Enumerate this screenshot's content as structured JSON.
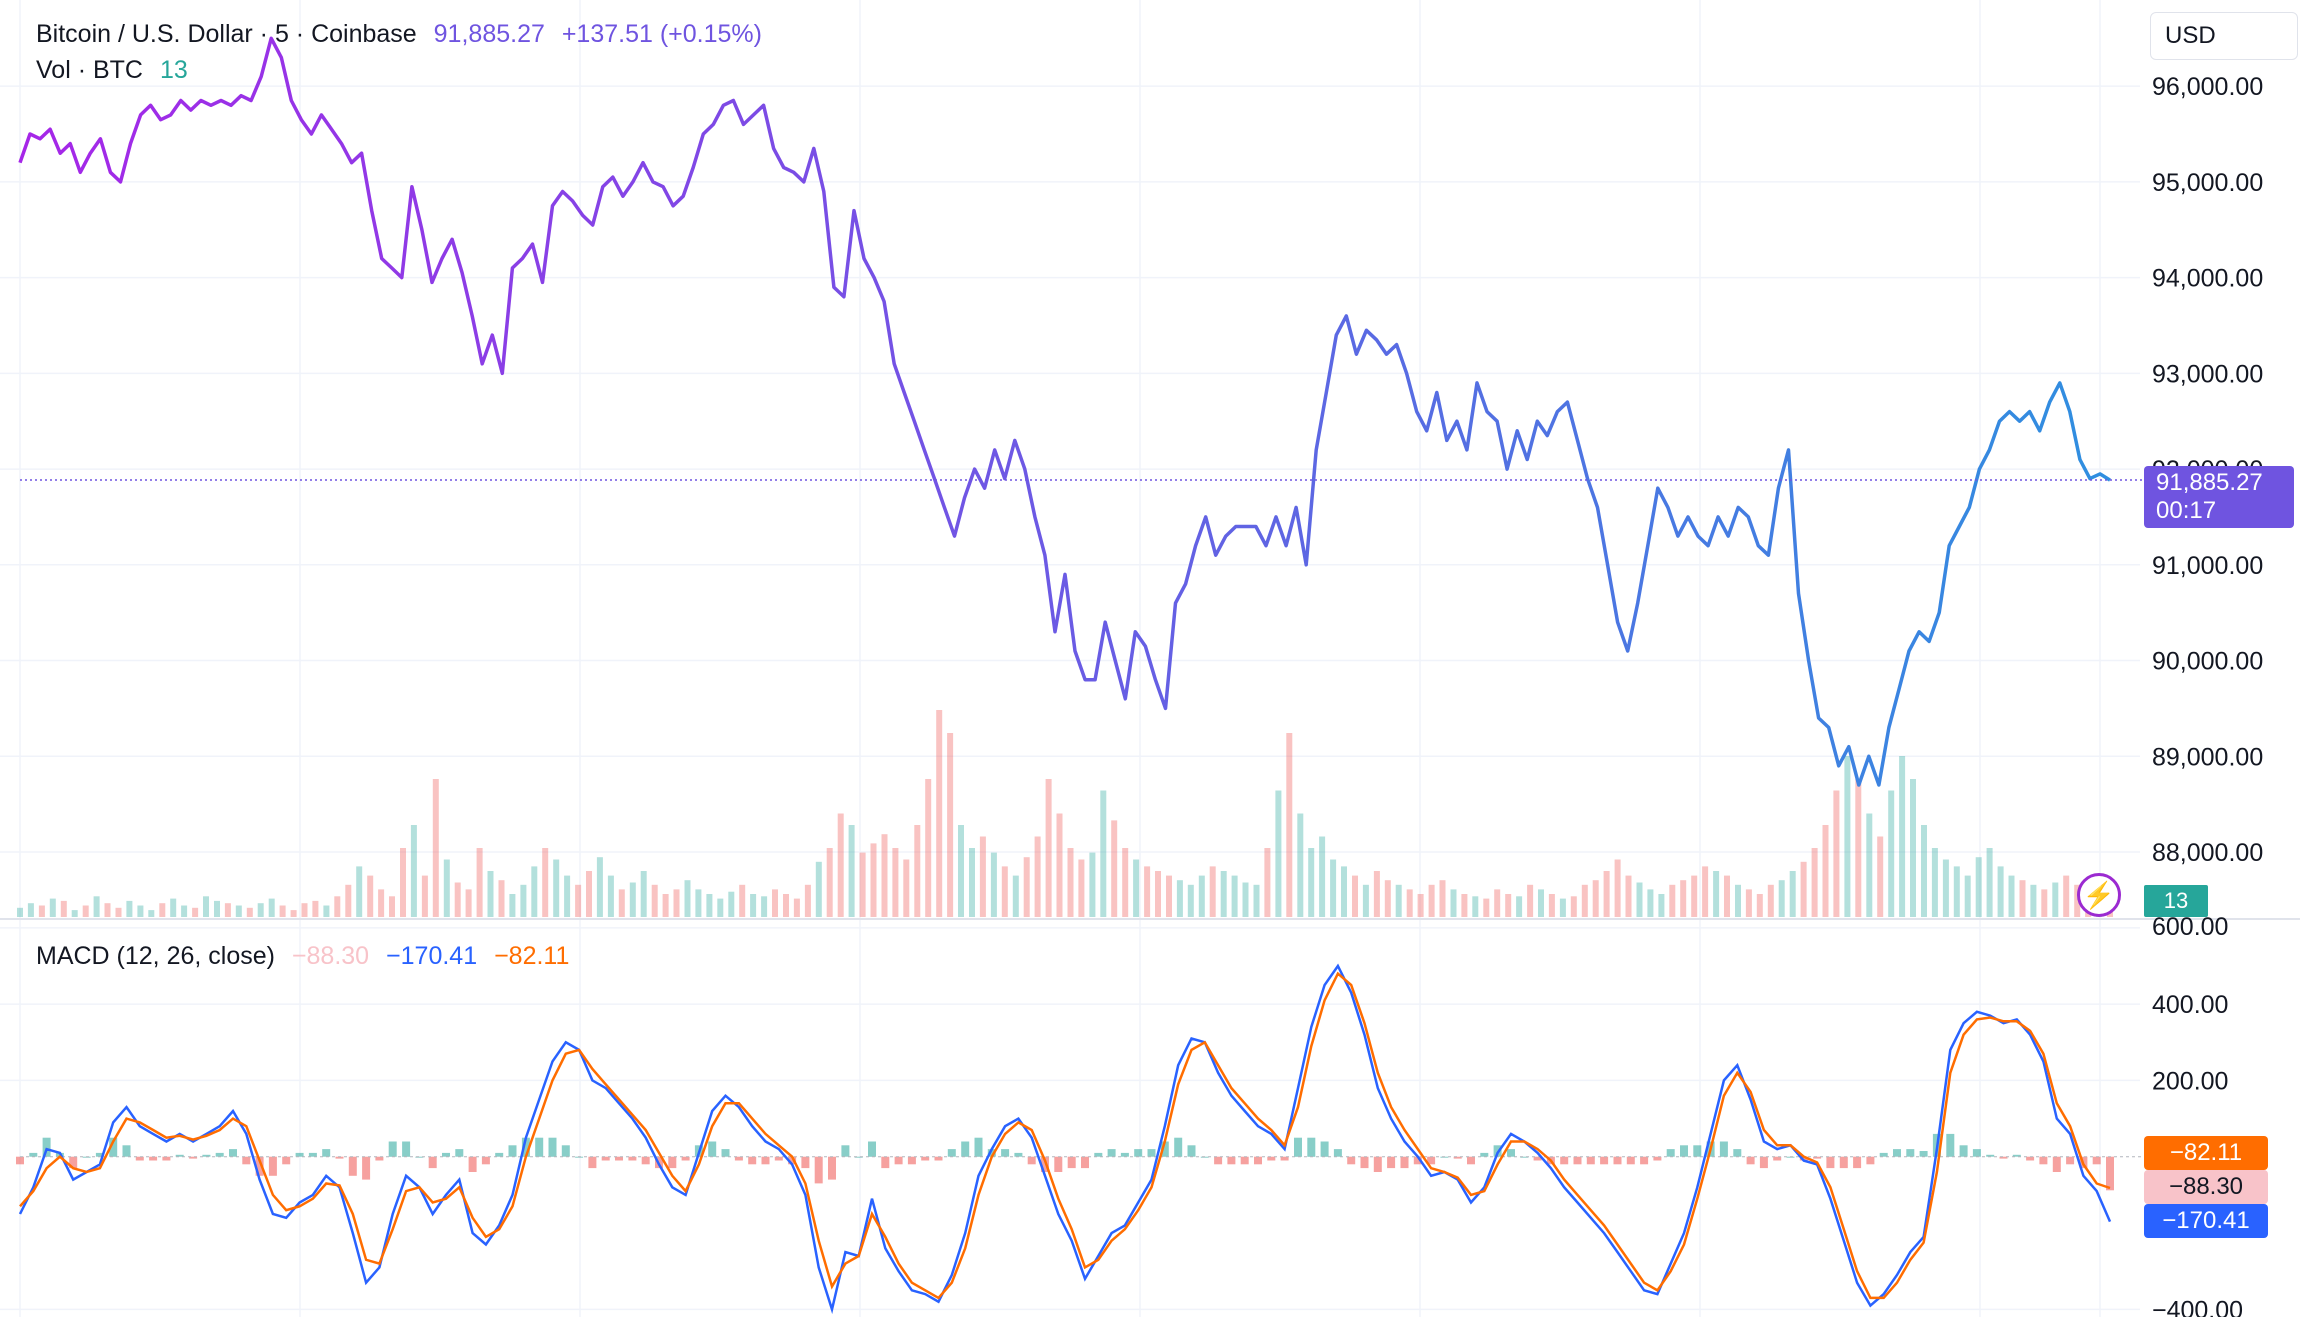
{
  "header": {
    "symbol": "Bitcoin / U.S. Dollar · 5 · Coinbase",
    "price": "91,885.27",
    "change": "+137.51 (+0.15%)",
    "vol_label": "Vol · BTC",
    "vol_value": "13",
    "currency": "USD"
  },
  "last_price_tag": {
    "price": "91,885.27",
    "countdown": "00:17"
  },
  "macd_legend": {
    "label": "MACD (12, 26, close)",
    "hist": "−88.30",
    "macd": "−170.41",
    "signal": "−82.11"
  },
  "macd_tags": {
    "signal": "−82.11",
    "hist": "−88.30",
    "macd": "−170.41"
  },
  "colors": {
    "price_start": "#a626e8",
    "price_end": "#2f8fe0",
    "up": "#26a69a",
    "down": "#ef5350",
    "macd": "#2962ff",
    "signal": "#ff6d00",
    "hist_tag": "#f8c3c9",
    "price_tag": "#6f54e0"
  },
  "chart_data": [
    {
      "type": "line",
      "title": "Bitcoin / U.S. Dollar · 5 · Coinbase",
      "y_ticks": [
        "96,000.00",
        "95,000.00",
        "94,000.00",
        "93,000.00",
        "92,000.00",
        "91,000.00",
        "90,000.00",
        "89,000.00",
        "88,000.00"
      ],
      "y_tick_values": [
        96000,
        95000,
        94000,
        93000,
        92000,
        91000,
        90000,
        89000,
        88000
      ],
      "ylim": [
        87300,
        96900
      ],
      "last": 91885.27,
      "grid": true,
      "series": [
        {
          "values": [
            95200,
            95500,
            95450,
            95550,
            95300,
            95400,
            95100,
            95300,
            95450,
            95100,
            95000,
            95400,
            95700,
            95800,
            95650,
            95700,
            95850,
            95750,
            95850,
            95800,
            95850,
            95800,
            95900,
            95850,
            96100,
            96500,
            96300,
            95850,
            95650,
            95500,
            95700,
            95550,
            95400,
            95200,
            95300,
            94700,
            94200,
            94100,
            94000,
            94950,
            94500,
            93950,
            94200,
            94400,
            94050,
            93600,
            93100,
            93400,
            93000,
            94100,
            94200,
            94350,
            93950,
            94750,
            94900,
            94800,
            94650,
            94550,
            94950,
            95050,
            94850,
            95000,
            95200,
            95000,
            94950,
            94750,
            94850,
            95150,
            95500,
            95600,
            95800,
            95850,
            95600,
            95700,
            95800,
            95350,
            95150,
            95100,
            95000,
            95350,
            94900,
            93900,
            93800,
            94700,
            94200,
            94000,
            93750,
            93100,
            92800,
            92500,
            92200,
            91900,
            91600,
            91300,
            91700,
            92000,
            91800,
            92200,
            91900,
            92300,
            92000,
            91500,
            91100,
            90300,
            90900,
            90100,
            89800,
            89800,
            90400,
            90000,
            89600,
            90300,
            90150,
            89800,
            89500,
            90600,
            90800,
            91200,
            91500,
            91100,
            91300,
            91400,
            91400,
            91400,
            91200,
            91500,
            91200,
            91600,
            91000,
            92200,
            92800,
            93400,
            93600,
            93200,
            93450,
            93350,
            93200,
            93300,
            93000,
            92600,
            92400,
            92800,
            92300,
            92500,
            92200,
            92900,
            92600,
            92500,
            92000,
            92400,
            92100,
            92500,
            92350,
            92600,
            92700,
            92300,
            91900,
            91600,
            91000,
            90400,
            90100,
            90600,
            91200,
            91800,
            91600,
            91300,
            91500,
            91300,
            91200,
            91500,
            91300,
            91600,
            91500,
            91200,
            91100,
            91800,
            92200,
            90700,
            90000,
            89400,
            89300,
            88900,
            89100,
            88700,
            89000,
            88700,
            89300,
            89700,
            90100,
            90300,
            90200,
            90500,
            91200,
            91400,
            91600,
            92000,
            92200,
            92500,
            92600,
            92500,
            92600,
            92400,
            92700,
            92900,
            92600,
            92100,
            91900,
            91950,
            91885
          ]
        }
      ]
    },
    {
      "type": "bar",
      "title": "Vol · BTC",
      "last": 13,
      "values": [
        4,
        6,
        5,
        8,
        7,
        3,
        5,
        9,
        6,
        4,
        7,
        5,
        3,
        6,
        8,
        5,
        4,
        9,
        7,
        6,
        5,
        4,
        6,
        8,
        5,
        3,
        6,
        7,
        5,
        9,
        14,
        22,
        18,
        12,
        9,
        30,
        40,
        18,
        60,
        25,
        15,
        12,
        30,
        20,
        16,
        10,
        14,
        22,
        30,
        25,
        18,
        14,
        20,
        26,
        18,
        12,
        15,
        20,
        14,
        10,
        12,
        16,
        12,
        10,
        8,
        11,
        14,
        10,
        9,
        12,
        10,
        8,
        14,
        24,
        30,
        45,
        40,
        28,
        32,
        36,
        30,
        25,
        40,
        60,
        90,
        80,
        40,
        30,
        35,
        28,
        22,
        18,
        26,
        35,
        60,
        45,
        30,
        25,
        28,
        55,
        42,
        30,
        25,
        22,
        20,
        18,
        16,
        14,
        18,
        22,
        20,
        18,
        15,
        14,
        30,
        55,
        80,
        45,
        30,
        35,
        25,
        22,
        18,
        14,
        20,
        16,
        14,
        12,
        10,
        14,
        16,
        12,
        10,
        9,
        8,
        12,
        10,
        9,
        14,
        12,
        10,
        8,
        9,
        14,
        16,
        20,
        25,
        18,
        15,
        12,
        10,
        14,
        16,
        18,
        22,
        20,
        18,
        14,
        12,
        10,
        14,
        16,
        20,
        24,
        30,
        40,
        55,
        70,
        60,
        45,
        35,
        55,
        70,
        60,
        40,
        30,
        25,
        22,
        18,
        26,
        30,
        22,
        18,
        16,
        14,
        12,
        15,
        18,
        14,
        12,
        10,
        13
      ]
    },
    {
      "type": "line",
      "title": "MACD (12, 26, close)",
      "y_ticks": [
        "600.00",
        "400.00",
        "200.00",
        "-400.00"
      ],
      "y_tick_values": [
        600,
        400,
        200,
        -400
      ],
      "ylim": [
        -420,
        610
      ],
      "series": [
        {
          "name": "MACD",
          "values": [
            -150,
            -80,
            20,
            10,
            -60,
            -40,
            -20,
            90,
            130,
            80,
            60,
            40,
            60,
            40,
            60,
            80,
            120,
            60,
            -60,
            -150,
            -160,
            -120,
            -100,
            -50,
            -80,
            -200,
            -330,
            -290,
            -150,
            -50,
            -80,
            -150,
            -100,
            -60,
            -200,
            -230,
            -180,
            -100,
            50,
            150,
            250,
            300,
            280,
            200,
            180,
            140,
            100,
            50,
            -20,
            -80,
            -100,
            10,
            120,
            160,
            130,
            80,
            40,
            20,
            -20,
            -100,
            -290,
            -400,
            -250,
            -260,
            -110,
            -240,
            -300,
            -350,
            -360,
            -380,
            -310,
            -200,
            -50,
            20,
            80,
            100,
            50,
            -50,
            -150,
            -220,
            -320,
            -260,
            -200,
            -180,
            -120,
            -60,
            80,
            240,
            310,
            300,
            220,
            160,
            120,
            80,
            60,
            20,
            180,
            340,
            450,
            500,
            430,
            320,
            180,
            100,
            40,
            0,
            -50,
            -40,
            -60,
            -120,
            -80,
            10,
            60,
            40,
            10,
            -30,
            -80,
            -120,
            -160,
            -200,
            -250,
            -300,
            -350,
            -360,
            -280,
            -200,
            -80,
            60,
            200,
            240,
            150,
            40,
            20,
            30,
            -10,
            -20,
            -110,
            -220,
            -330,
            -390,
            -360,
            -310,
            -250,
            -210,
            20,
            280,
            350,
            380,
            370,
            350,
            360,
            320,
            250,
            100,
            60,
            -50,
            -90,
            -170
          ]
        },
        {
          "name": "Signal",
          "values": [
            -130,
            -90,
            -30,
            0,
            -30,
            -40,
            -30,
            40,
            100,
            90,
            70,
            50,
            55,
            45,
            55,
            70,
            100,
            80,
            -10,
            -100,
            -140,
            -130,
            -110,
            -70,
            -75,
            -150,
            -270,
            -280,
            -190,
            -90,
            -80,
            -120,
            -110,
            -80,
            -160,
            -210,
            -190,
            -130,
            0,
            100,
            200,
            270,
            280,
            230,
            190,
            150,
            110,
            70,
            10,
            -50,
            -90,
            -20,
            80,
            140,
            140,
            100,
            60,
            30,
            0,
            -70,
            -220,
            -340,
            -280,
            -260,
            -150,
            -210,
            -280,
            -330,
            -350,
            -370,
            -330,
            -240,
            -100,
            0,
            60,
            90,
            70,
            -10,
            -110,
            -190,
            -290,
            -270,
            -220,
            -190,
            -140,
            -80,
            40,
            190,
            280,
            300,
            240,
            180,
            140,
            100,
            70,
            30,
            130,
            290,
            410,
            480,
            450,
            350,
            220,
            130,
            70,
            20,
            -30,
            -40,
            -55,
            -100,
            -90,
            -20,
            40,
            40,
            20,
            -10,
            -60,
            -100,
            -140,
            -180,
            -230,
            -280,
            -330,
            -350,
            -300,
            -230,
            -110,
            20,
            160,
            220,
            170,
            70,
            30,
            30,
            0,
            -15,
            -80,
            -190,
            -300,
            -370,
            -370,
            -330,
            -270,
            -225,
            -40,
            220,
            320,
            360,
            365,
            355,
            355,
            330,
            270,
            140,
            80,
            -20,
            -70,
            -82
          ]
        }
      ]
    }
  ]
}
